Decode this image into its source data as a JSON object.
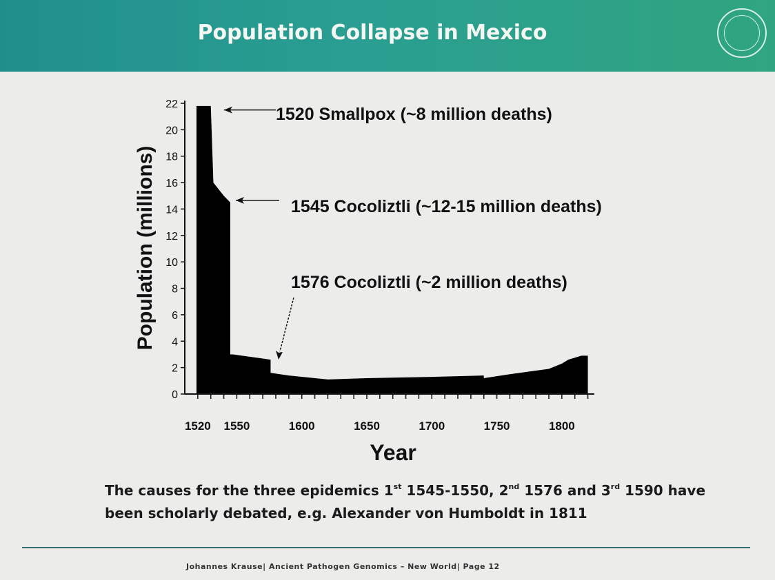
{
  "slide": {
    "title": "Population Collapse in Mexico",
    "caption": {
      "part1": "The causes for the three epidemics 1",
      "sup1": "st",
      "part2": " 1545-1550, 2",
      "sup2": "nd",
      "part3": " 1576 and 3",
      "sup3": "rd",
      "part4": " 1590 have been scholarly debated, e.g. Alexander von Humboldt in 1811"
    },
    "footer": "Johannes Krause| Ancient Pathogen Genomics – New World|  Page  12",
    "colors": {
      "header_start": "#1f8f8c",
      "header_end": "#2fa57f",
      "background": "#ececea",
      "area_fill": "#000000"
    }
  },
  "chart_data": {
    "type": "area",
    "xlabel": "Year",
    "ylabel": "Population (millions)",
    "xlim": [
      1510,
      1825
    ],
    "ylim": [
      0,
      22
    ],
    "x_ticks": [
      1520,
      1550,
      1600,
      1650,
      1700,
      1750,
      1800
    ],
    "y_ticks": [
      0,
      2,
      4,
      6,
      8,
      10,
      12,
      14,
      16,
      18,
      20,
      22
    ],
    "grid": false,
    "series": [
      {
        "x": [
          1519,
          1530,
          1532,
          1540,
          1545,
          1545,
          1547,
          1576,
          1576,
          1590,
          1620,
          1650,
          1700,
          1740,
          1740,
          1760,
          1790,
          1800,
          1805,
          1815,
          1820
        ],
        "y": [
          21.8,
          21.8,
          16.0,
          15.0,
          14.5,
          3.0,
          3.0,
          2.6,
          1.6,
          1.4,
          1.1,
          1.2,
          1.3,
          1.4,
          1.2,
          1.5,
          1.9,
          2.3,
          2.6,
          2.9,
          2.9
        ]
      }
    ],
    "annotations": [
      {
        "x": 1520,
        "y": 21.5,
        "text": "1520  Smallpox (~8 million deaths)"
      },
      {
        "x": 1545,
        "y": 14.5,
        "text": "1545  Cocoliztli (~12-15 million deaths)"
      },
      {
        "x": 1576,
        "y": 2.6,
        "text": "1576  Cocoliztli (~2 million deaths)"
      }
    ]
  }
}
